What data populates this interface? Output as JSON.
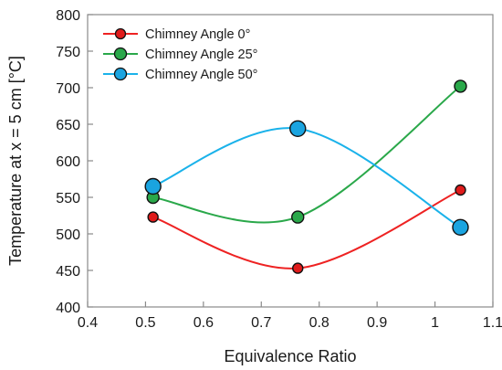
{
  "chart_data": {
    "type": "line",
    "title": "",
    "xlabel": "Equivalence Ratio",
    "ylabel": "Temperature at x = 5 cm [°C]",
    "xlim": [
      0.4,
      1.1
    ],
    "ylim": [
      400,
      800
    ],
    "x_ticks": [
      0.4,
      0.5,
      0.6,
      0.7,
      0.8,
      0.9,
      1,
      1.1
    ],
    "x_tick_labels": [
      "0.4",
      "0.5",
      "0.6",
      "0.7",
      "0.8",
      "0.9",
      "1",
      "1.1"
    ],
    "y_ticks": [
      400,
      450,
      500,
      550,
      600,
      650,
      700,
      750,
      800
    ],
    "y_tick_labels": [
      "400",
      "450",
      "500",
      "550",
      "600",
      "650",
      "700",
      "750",
      "800"
    ],
    "grid": false,
    "legend_position": "top-left",
    "x": [
      0.513,
      0.763,
      1.044
    ],
    "series": [
      {
        "name": "Chimney Angle 0°",
        "values": [
          523,
          453,
          560
        ],
        "line_color": "#ee2222",
        "marker_color": "#e01b1b",
        "marker": "small-circle"
      },
      {
        "name": "Chimney Angle 25°",
        "values": [
          550,
          523,
          702
        ],
        "line_color": "#2aa84a",
        "marker_color": "#2aa84a",
        "marker": "medium-circle"
      },
      {
        "name": "Chimney Angle 50°",
        "values": [
          565,
          644,
          509
        ],
        "line_color": "#1ab2ea",
        "marker_color": "#1aa4e0",
        "marker": "large-circle"
      }
    ]
  }
}
